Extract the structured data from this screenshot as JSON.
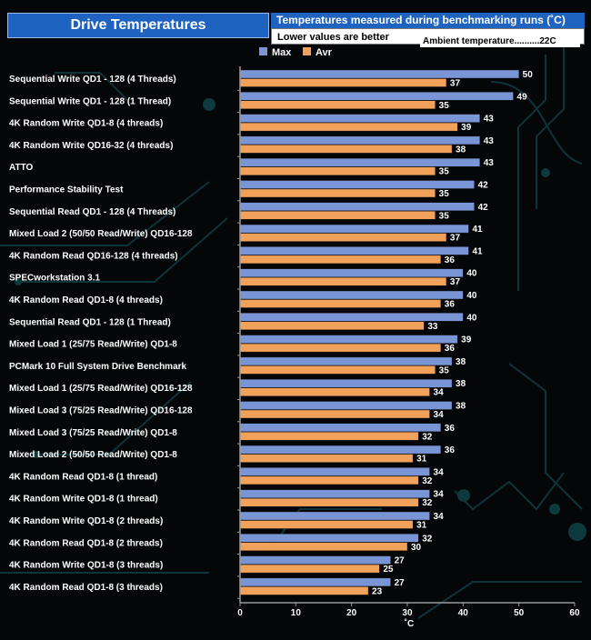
{
  "header": {
    "title": "Drive Temperatures",
    "subtitle": "Temperatures measured during benchmarking runs (˚C)",
    "note": "Lower values are better",
    "ambient": "Ambient  temperature..........22C"
  },
  "colors": {
    "max": "#7a95d6",
    "avr": "#f2a15a",
    "axis": "#9a9a9a"
  },
  "chart_data": {
    "type": "bar",
    "orientation": "horizontal",
    "categories": [
      "Sequential Write QD1 - 128 (4 Threads)",
      "Sequential Write QD1 - 128 (1 Thread)",
      "4K Random Write QD1-8 (4 threads)",
      "4K Random Write QD16-32 (4 threads)",
      "ATTO",
      "Performance Stability Test",
      "Sequential Read QD1 - 128 (4 Threads)",
      "Mixed Load 2 (50/50 Read/Write) QD16-128",
      "4K Random Read QD16-128 (4 threads)",
      "SPECworkstation 3.1",
      "4K Random Read QD1-8 (4 threads)",
      "Sequential Read QD1 - 128 (1 Thread)",
      "Mixed Load 1 (25/75 Read/Write) QD1-8",
      "PCMark 10 Full System Drive Benchmark",
      "Mixed Load 1 (25/75 Read/Write) QD16-128",
      "Mixed Load 3 (75/25 Read/Write) QD16-128",
      "Mixed Load 3 (75/25 Read/Write) QD1-8",
      "Mixed Load 2 (50/50 Read/Write) QD1-8",
      "4K Random Read QD1-8 (1 thread)",
      "4K Random Write QD1-8 (1 thread)",
      "4K Random Write QD1-8 (2 threads)",
      "4K Random Read QD1-8 (2 threads)",
      "4K Random Write QD1-8 (3 threads)",
      "4K Random Read QD1-8 (3 threads)"
    ],
    "series": [
      {
        "name": "Max",
        "values": [
          50,
          49,
          43,
          43,
          43,
          42,
          42,
          41,
          41,
          40,
          40,
          40,
          39,
          38,
          38,
          38,
          36,
          36,
          34,
          34,
          34,
          32,
          27,
          27
        ]
      },
      {
        "name": "Avr",
        "values": [
          37,
          35,
          39,
          38,
          35,
          35,
          35,
          37,
          36,
          37,
          36,
          33,
          36,
          35,
          34,
          34,
          32,
          31,
          32,
          32,
          31,
          30,
          25,
          23
        ]
      }
    ],
    "xlabel": "˚C",
    "xlim": [
      0,
      60
    ],
    "xticks": [
      0,
      10,
      20,
      30,
      40,
      50,
      60
    ],
    "legend_position": "top",
    "grid": false
  }
}
